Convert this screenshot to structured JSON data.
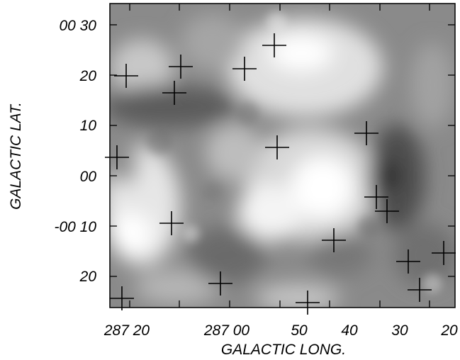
{
  "figure": {
    "x_axis": {
      "title": "GALACTIC LONG.",
      "tick_labels": [
        "287 20",
        "287 00",
        "50",
        "40",
        "30",
        "20"
      ]
    },
    "y_axis": {
      "title": "GALACTIC LAT.",
      "tick_labels": [
        "00 30",
        "20",
        "10",
        "00",
        "-00 10",
        "20"
      ]
    },
    "image": {
      "type": "grayscale intensity map",
      "markers": "plus-sign crosses",
      "marker_count": 18
    }
  }
}
